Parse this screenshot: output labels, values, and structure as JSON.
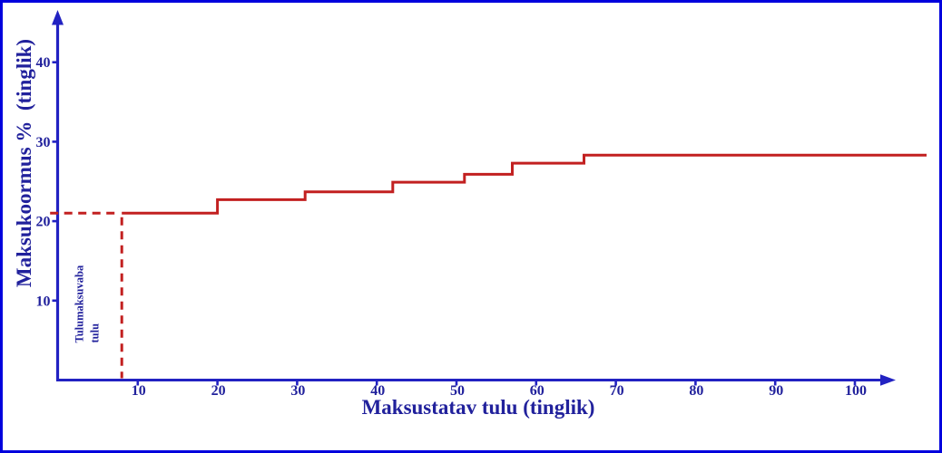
{
  "window": {
    "background": "#ffffff",
    "border_color": "#0000dd"
  },
  "colors": {
    "axis": "#2222c2",
    "label_text": "#21219c",
    "line": "#c22020"
  },
  "chart_data": {
    "type": "line",
    "line_style": "step",
    "title": "",
    "xlabel": "Maksustatav tulu (tinglik)",
    "ylabel": "Maksukoormus %  (tinglik)",
    "x_ticks": [
      10,
      20,
      30,
      40,
      50,
      60,
      70,
      80,
      90,
      100
    ],
    "y_ticks": [
      10,
      20,
      30,
      40
    ],
    "xlim": [
      0,
      105
    ],
    "ylim": [
      0,
      46
    ],
    "grid": false,
    "legend": false,
    "annotation": {
      "line1": "Tulumaksuvaba",
      "line2": "tulu"
    },
    "series": [
      {
        "name": "maksukoormus-step",
        "color": "#c22020",
        "steps": [
          {
            "x_start": 8,
            "x_end": 20,
            "y": 21.0
          },
          {
            "x_start": 20,
            "x_end": 31,
            "y": 22.7
          },
          {
            "x_start": 31,
            "x_end": 42,
            "y": 23.7
          },
          {
            "x_start": 42,
            "x_end": 51,
            "y": 24.9
          },
          {
            "x_start": 51,
            "x_end": 57,
            "y": 25.9
          },
          {
            "x_start": 57,
            "x_end": 66,
            "y": 27.3
          },
          {
            "x_start": 66,
            "x_end": 109,
            "y": 28.3
          }
        ]
      }
    ],
    "guides": {
      "horizontal_dashed": {
        "y": 21,
        "x_from": -1,
        "x_to": 8
      },
      "vertical_dashed": {
        "x": 8,
        "y_from": 0,
        "y_to": 21
      }
    }
  }
}
